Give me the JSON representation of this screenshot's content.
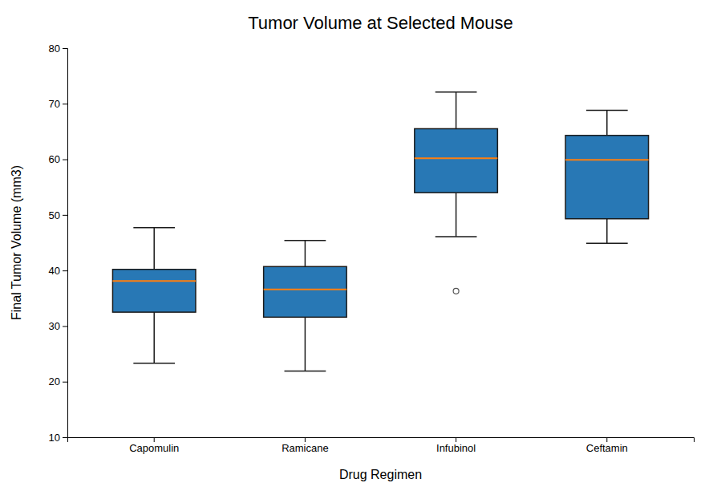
{
  "chart_data": {
    "type": "box",
    "title": "Tumor Volume at Selected Mouse",
    "xlabel": "Drug Regimen",
    "ylabel": "Final Tumor Volume (mm3)",
    "categories": [
      "Capomulin",
      "Ramicane",
      "Infubinol",
      "Ceftamin"
    ],
    "q1": [
      32.5,
      31.6,
      54.0,
      49.3
    ],
    "median": [
      38.1,
      36.6,
      60.2,
      59.9
    ],
    "q3": [
      40.2,
      40.7,
      65.5,
      64.3
    ],
    "whislo": [
      23.3,
      21.9,
      46.1,
      44.9
    ],
    "whishi": [
      47.7,
      45.4,
      72.1,
      68.8
    ],
    "fliers": [
      [],
      [],
      [
        36.3
      ],
      []
    ],
    "color": "#2878b5",
    "ylim": [
      10,
      80
    ],
    "yticks": [
      10,
      20,
      30,
      40,
      50,
      60,
      70,
      80
    ],
    "grid": false
  }
}
